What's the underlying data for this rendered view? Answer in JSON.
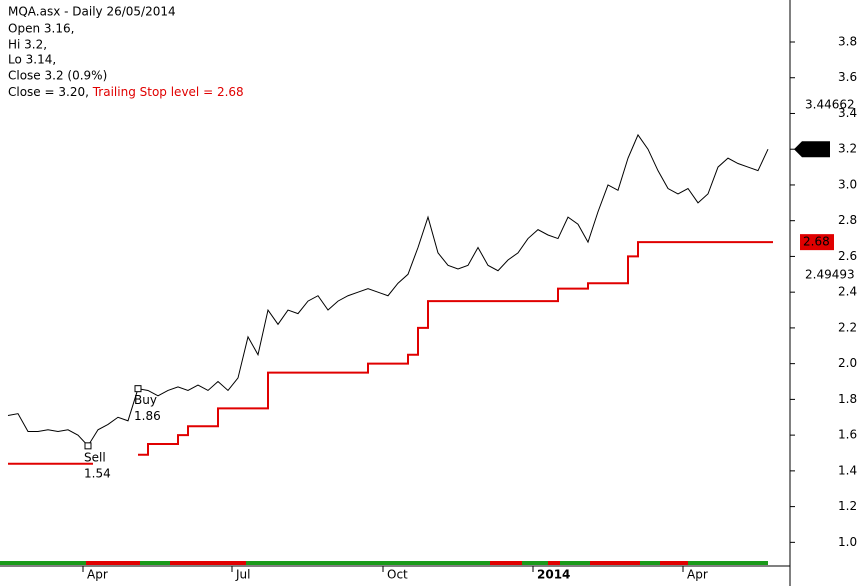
{
  "chart_data": {
    "type": "line",
    "header": [
      "MQA.asx - Daily 26/05/2014",
      "Open 3.16,",
      "Hi 3.2,",
      "Lo 3.14,",
      "Close 3.2 (0.9%)"
    ],
    "status_line": {
      "close": "Close = 3.20, ",
      "stop": "Trailing Stop level = 2.68"
    },
    "x": [
      0,
      1,
      2,
      3,
      4,
      5,
      6,
      7,
      8,
      9,
      10,
      11,
      12,
      13,
      14,
      15,
      16,
      17,
      18,
      19,
      20,
      21,
      22,
      23,
      24,
      25,
      26,
      27,
      28,
      29,
      30,
      31,
      32,
      33,
      34,
      35,
      36,
      37,
      38,
      39,
      40,
      41,
      42,
      43,
      44,
      45,
      46,
      47,
      48,
      49,
      50,
      51,
      52,
      53,
      54,
      55,
      56,
      57,
      58,
      59,
      60,
      61,
      62,
      63,
      64,
      65,
      66,
      67,
      68,
      69,
      70,
      71,
      72,
      73,
      74,
      75,
      76
    ],
    "xlim": [
      -0.8,
      78.2
    ],
    "xticks": [
      {
        "value": 7.5,
        "label": "Apr"
      },
      {
        "value": 22.4,
        "label": "Jul"
      },
      {
        "value": 37.5,
        "label": "Oct"
      },
      {
        "value": 52.5,
        "label": "2014"
      },
      {
        "value": 67.5,
        "label": "Apr"
      }
    ],
    "series": [
      {
        "name": "Close",
        "color": "#000000",
        "values": [
          1.71,
          1.72,
          1.62,
          1.62,
          1.63,
          1.62,
          1.63,
          1.6,
          1.54,
          1.63,
          1.66,
          1.7,
          1.68,
          1.86,
          1.85,
          1.82,
          1.85,
          1.87,
          1.85,
          1.88,
          1.85,
          1.9,
          1.85,
          1.92,
          2.15,
          2.05,
          2.3,
          2.22,
          2.3,
          2.28,
          2.35,
          2.38,
          2.3,
          2.35,
          2.38,
          2.4,
          2.42,
          2.4,
          2.38,
          2.45,
          2.5,
          2.65,
          2.82,
          2.62,
          2.55,
          2.53,
          2.55,
          2.65,
          2.55,
          2.52,
          2.58,
          2.62,
          2.7,
          2.75,
          2.72,
          2.7,
          2.82,
          2.78,
          2.68,
          2.85,
          3.0,
          2.97,
          3.15,
          3.28,
          3.2,
          3.08,
          2.98,
          2.95,
          2.98,
          2.9,
          2.95,
          3.1,
          3.15,
          3.12,
          3.1,
          3.08,
          3.2
        ]
      },
      {
        "name": "Trailing Stop level",
        "color": "#e00000",
        "values": [
          1.44,
          1.44,
          1.44,
          1.44,
          1.44,
          1.44,
          1.44,
          1.44,
          1.44,
          null,
          null,
          null,
          null,
          1.49,
          1.55,
          1.55,
          1.55,
          1.6,
          1.65,
          1.65,
          1.65,
          1.75,
          1.75,
          1.75,
          1.75,
          1.75,
          1.95,
          1.95,
          1.95,
          1.95,
          1.95,
          1.95,
          1.95,
          1.95,
          1.95,
          1.95,
          2.0,
          2.0,
          2.0,
          2.0,
          2.05,
          2.2,
          2.35,
          2.35,
          2.35,
          2.35,
          2.35,
          2.35,
          2.35,
          2.35,
          2.35,
          2.35,
          2.35,
          2.35,
          2.35,
          2.42,
          2.42,
          2.42,
          2.45,
          2.45,
          2.45,
          2.45,
          2.6,
          2.68,
          2.68,
          2.68,
          2.68,
          2.68,
          2.68,
          2.68,
          2.68,
          2.68,
          2.68,
          2.68,
          2.68,
          2.68,
          2.68
        ]
      }
    ],
    "annotations": [
      {
        "label": "Sell",
        "value": 1.54,
        "x": 8
      },
      {
        "label": "Buy",
        "value": 1.86,
        "x": 13
      }
    ],
    "axis_markers": [
      3.44662,
      2.49493
    ],
    "ylim": [
      0.89,
      4.035
    ],
    "yticks": [
      {
        "value": 1.0,
        "label": "1.0"
      },
      1.2,
      1.4,
      1.6,
      1.8,
      {
        "value": 2.0,
        "label": "2.0"
      },
      2.2,
      2.4,
      2.6,
      2.8,
      {
        "value": 3.0,
        "label": "3.0"
      },
      3.2,
      3.4,
      3.6,
      3.8
    ]
  }
}
